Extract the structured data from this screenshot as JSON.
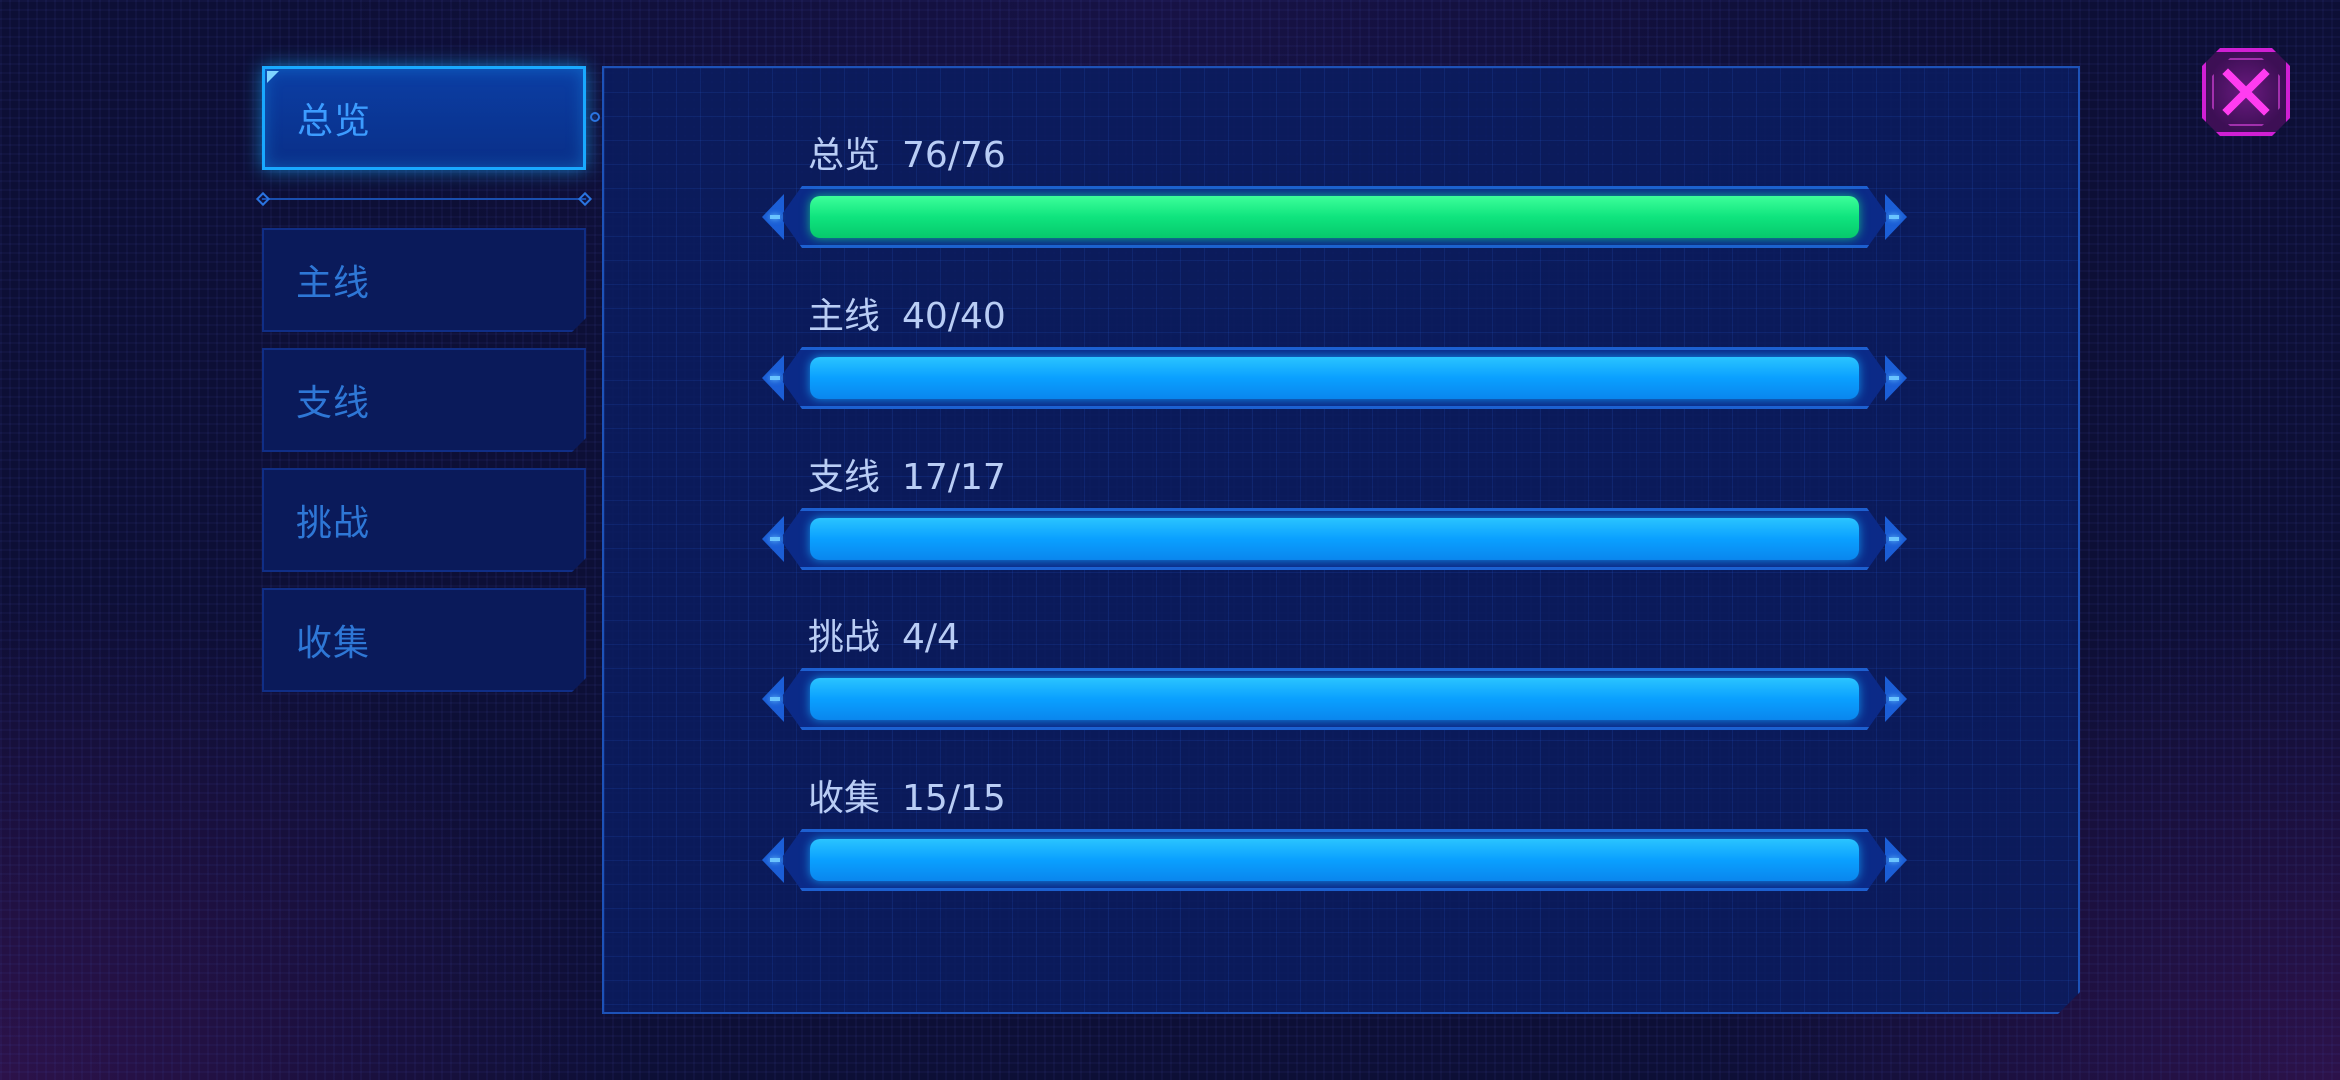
{
  "tabs": [
    {
      "label": "总览",
      "active": true
    },
    {
      "label": "主线",
      "active": false
    },
    {
      "label": "支线",
      "active": false
    },
    {
      "label": "挑战",
      "active": false
    },
    {
      "label": "收集",
      "active": false
    }
  ],
  "progress": [
    {
      "name": "总览",
      "count": "76/76",
      "current": 76,
      "total": 76,
      "color": "green"
    },
    {
      "name": "主线",
      "count": "40/40",
      "current": 40,
      "total": 40,
      "color": "blue"
    },
    {
      "name": "支线",
      "count": "17/17",
      "current": 17,
      "total": 17,
      "color": "blue"
    },
    {
      "name": "挑战",
      "count": "4/4",
      "current": 4,
      "total": 4,
      "color": "blue"
    },
    {
      "name": "收集",
      "count": "15/15",
      "current": 15,
      "total": 15,
      "color": "blue"
    }
  ],
  "colors": {
    "accent_blue": "#19a9ff",
    "fill_blue": "#0aa0ff",
    "fill_green": "#0fe47e",
    "close_magenta": "#d11fd4"
  },
  "icons": {
    "close": "close-icon"
  }
}
